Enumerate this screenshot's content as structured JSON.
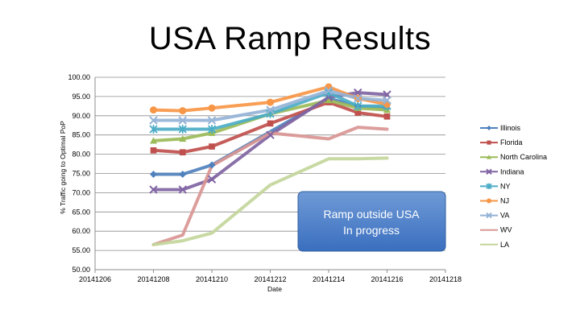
{
  "slide": {
    "title": "USA Ramp Results"
  },
  "chart_data": {
    "type": "line",
    "title": "USA Ramp Results",
    "xlabel": "Date",
    "ylabel": "% Traffic going to Optimal PoP",
    "ylim": [
      50,
      100
    ],
    "yticks": [
      "100.00",
      "95.00",
      "90.00",
      "85.00",
      "80.00",
      "75.00",
      "70.00",
      "65.00",
      "60.00",
      "55.00",
      "50.00"
    ],
    "xlim": [
      20141206,
      20141218
    ],
    "xticks": [
      "20141206",
      "20141208",
      "20141210",
      "20141212",
      "20141214",
      "20141216",
      "20141218"
    ],
    "grid": true,
    "legend_position": "right",
    "series": [
      {
        "name": "Illinois",
        "color": "#4f81bd",
        "marker": "diamond",
        "x": [
          20141208,
          20141209,
          20141210,
          20141214,
          20141215,
          20141216
        ],
        "y": [
          74.8,
          74.8,
          77.2,
          94.5,
          92.5,
          92.0
        ]
      },
      {
        "name": "Florida",
        "color": "#c0504d",
        "marker": "square",
        "x": [
          20141208,
          20141209,
          20141210,
          20141212,
          20141214,
          20141215,
          20141216
        ],
        "y": [
          81.0,
          80.5,
          82.0,
          88.0,
          93.5,
          90.8,
          89.8
        ]
      },
      {
        "name": "North Carolina",
        "color": "#9bbb59",
        "marker": "triangle",
        "x": [
          20141208,
          20141209,
          20141210,
          20141212,
          20141214,
          20141215,
          20141216
        ],
        "y": [
          83.5,
          84.0,
          85.5,
          90.5,
          94.0,
          92.0,
          91.5
        ]
      },
      {
        "name": "Indiana",
        "color": "#8064a2",
        "marker": "x",
        "x": [
          20141208,
          20141209,
          20141210,
          20141212,
          20141214,
          20141215,
          20141216
        ],
        "y": [
          70.8,
          70.8,
          73.5,
          85.0,
          94.8,
          96.0,
          95.5
        ]
      },
      {
        "name": "NY",
        "color": "#4bacc6",
        "marker": "star",
        "x": [
          20141208,
          20141209,
          20141210,
          20141212,
          20141214,
          20141215,
          20141216
        ],
        "y": [
          86.5,
          86.5,
          86.5,
          90.5,
          96.0,
          92.5,
          92.5
        ]
      },
      {
        "name": "NJ",
        "color": "#f79646",
        "marker": "circle",
        "x": [
          20141208,
          20141209,
          20141210,
          20141212,
          20141214,
          20141215,
          20141216
        ],
        "y": [
          91.5,
          91.3,
          92.0,
          93.5,
          97.5,
          94.5,
          93.0
        ]
      },
      {
        "name": "VA",
        "color": "#95b3d7",
        "marker": "x",
        "x": [
          20141208,
          20141209,
          20141210,
          20141212,
          20141214,
          20141215,
          20141216
        ],
        "y": [
          88.8,
          88.8,
          88.8,
          91.5,
          96.5,
          94.5,
          94.0
        ]
      },
      {
        "name": "WV",
        "color": "#d99694",
        "marker": "none",
        "x": [
          20141208,
          20141209,
          20141210,
          20141212,
          20141214,
          20141215,
          20141216
        ],
        "y": [
          56.5,
          59.0,
          77.0,
          85.5,
          84.0,
          87.0,
          86.5
        ]
      },
      {
        "name": "LA",
        "color": "#c3d69b",
        "marker": "none",
        "x": [
          20141208,
          20141209,
          20141210,
          20141212,
          20141214,
          20141215,
          20141216
        ],
        "y": [
          56.5,
          57.5,
          59.5,
          72.0,
          78.8,
          78.8,
          79.0
        ]
      }
    ],
    "annotation": {
      "lines": [
        "Ramp outside USA",
        "In progress"
      ],
      "color": "#4a7ebf"
    }
  }
}
